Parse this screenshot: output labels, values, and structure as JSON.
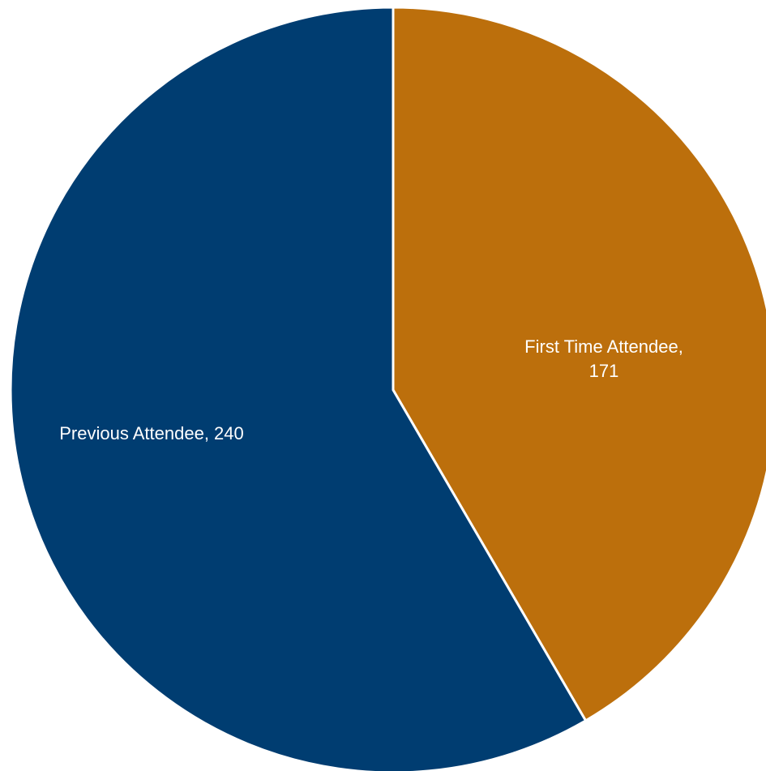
{
  "chart_data": {
    "type": "pie",
    "slices": [
      {
        "label": "First Time Attendee",
        "value": 171,
        "color": "#BC6F0C",
        "label_lines": [
          "First Time Attendee,",
          "171"
        ]
      },
      {
        "label": "Previous Attendee",
        "value": 240,
        "color": "#003D71",
        "label_lines": [
          "Previous Attendee, 240"
        ]
      }
    ],
    "start": "12 o'clock",
    "direction": "clockwise",
    "separator_color": "#ffffff",
    "legend": "none"
  }
}
